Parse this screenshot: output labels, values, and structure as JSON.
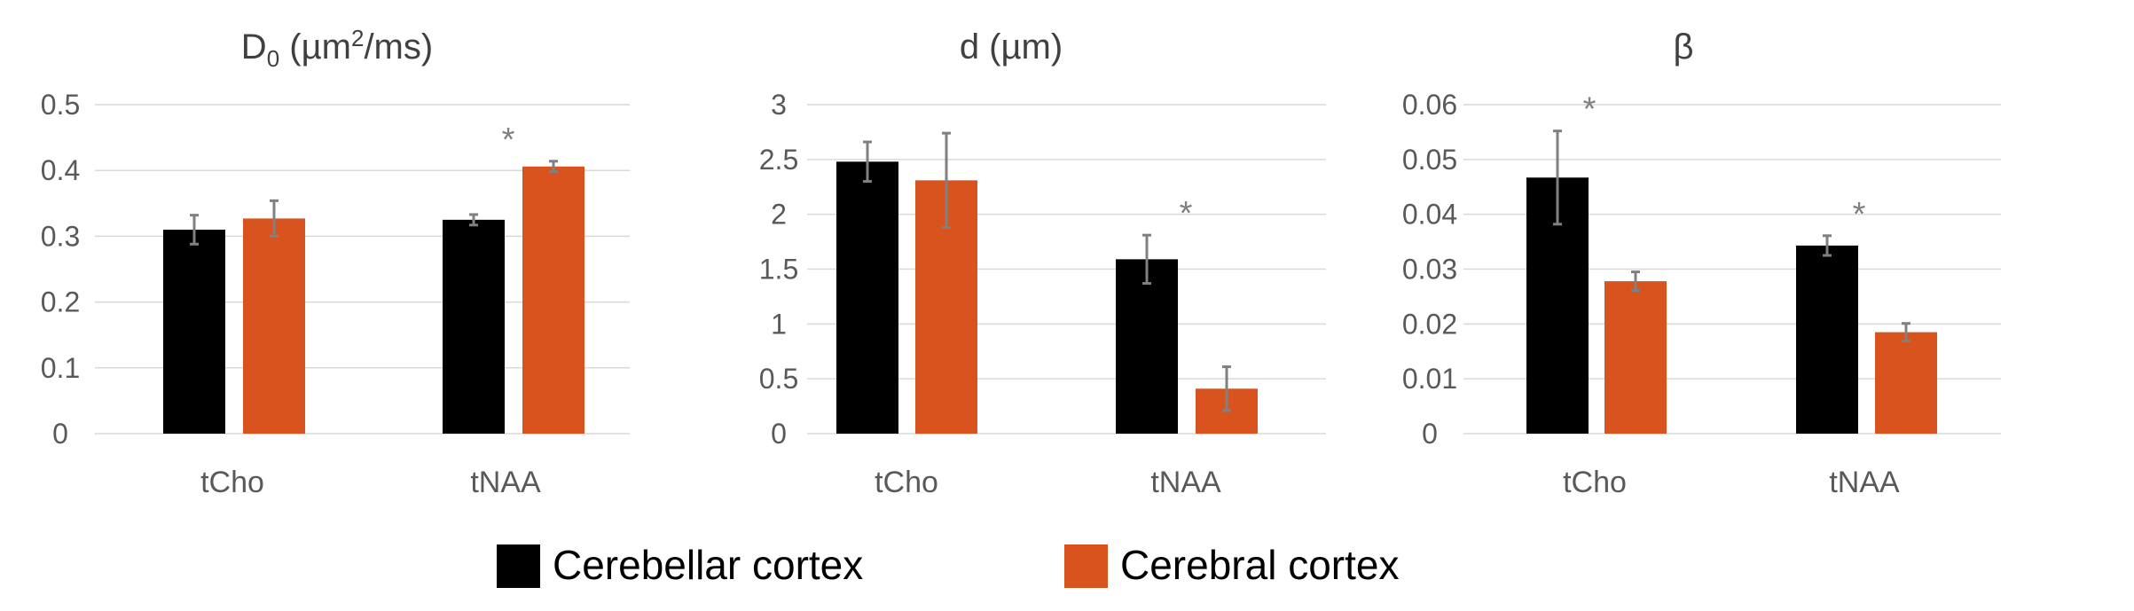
{
  "colors": {
    "series_0": "#000000",
    "series_1": "#d9531e",
    "gridline": "#d9d9d9",
    "axis_text": "#595959",
    "error_bar": "#808080",
    "significance": "#808080"
  },
  "legend": {
    "position": "bottom-center",
    "items": [
      {
        "label": "Cerebellar cortex",
        "color": "#000000"
      },
      {
        "label": "Cerebral cortex",
        "color": "#d9531e"
      }
    ]
  },
  "chart_data": [
    {
      "type": "bar",
      "title": "D",
      "title_subscript": "0",
      "title_rest": " (µm",
      "title_superscript": "2",
      "title_tail": "/ms)",
      "categories": [
        "tCho",
        "tNAA"
      ],
      "ylim": [
        0,
        0.5
      ],
      "yticks": [
        0,
        0.1,
        0.2,
        0.3,
        0.4,
        0.5
      ],
      "ytick_labels": [
        "0",
        "0.1",
        "0.2",
        "0.3",
        "0.4",
        "0.5"
      ],
      "series": [
        {
          "name": "Cerebellar cortex",
          "values": [
            0.31,
            0.325
          ],
          "errors": [
            0.022,
            0.008
          ]
        },
        {
          "name": "Cerebral cortex",
          "values": [
            0.327,
            0.406
          ],
          "errors": [
            0.027,
            0.008
          ]
        }
      ],
      "significance": [
        {
          "category": "tNAA",
          "label": "*"
        }
      ]
    },
    {
      "type": "bar",
      "title": "d (µm)",
      "categories": [
        "tCho",
        "tNAA"
      ],
      "ylim": [
        0,
        3
      ],
      "yticks": [
        0,
        0.5,
        1,
        1.5,
        2,
        2.5,
        3
      ],
      "ytick_labels": [
        "0",
        "0.5",
        "1",
        "1.5",
        "2",
        "2.5",
        "3"
      ],
      "series": [
        {
          "name": "Cerebellar cortex",
          "values": [
            2.48,
            1.59
          ],
          "errors": [
            0.18,
            0.22
          ]
        },
        {
          "name": "Cerebral cortex",
          "values": [
            2.31,
            0.41
          ],
          "errors": [
            0.43,
            0.2
          ]
        }
      ],
      "significance": [
        {
          "category": "tNAA",
          "label": "*"
        }
      ]
    },
    {
      "type": "bar",
      "title": "β",
      "categories": [
        "tCho",
        "tNAA"
      ],
      "ylim": [
        0,
        0.06
      ],
      "yticks": [
        0,
        0.01,
        0.02,
        0.03,
        0.04,
        0.05,
        0.06
      ],
      "ytick_labels": [
        "0",
        "0.01",
        "0.02",
        "0.03",
        "0.04",
        "0.05",
        "0.06"
      ],
      "series": [
        {
          "name": "Cerebellar cortex",
          "values": [
            0.0467,
            0.0343
          ],
          "errors": [
            0.0085,
            0.0018
          ]
        },
        {
          "name": "Cerebral cortex",
          "values": [
            0.0278,
            0.0185
          ],
          "errors": [
            0.0017,
            0.0016
          ]
        }
      ],
      "significance": [
        {
          "category": "tCho",
          "label": "*"
        },
        {
          "category": "tNAA",
          "label": "*"
        }
      ]
    }
  ]
}
